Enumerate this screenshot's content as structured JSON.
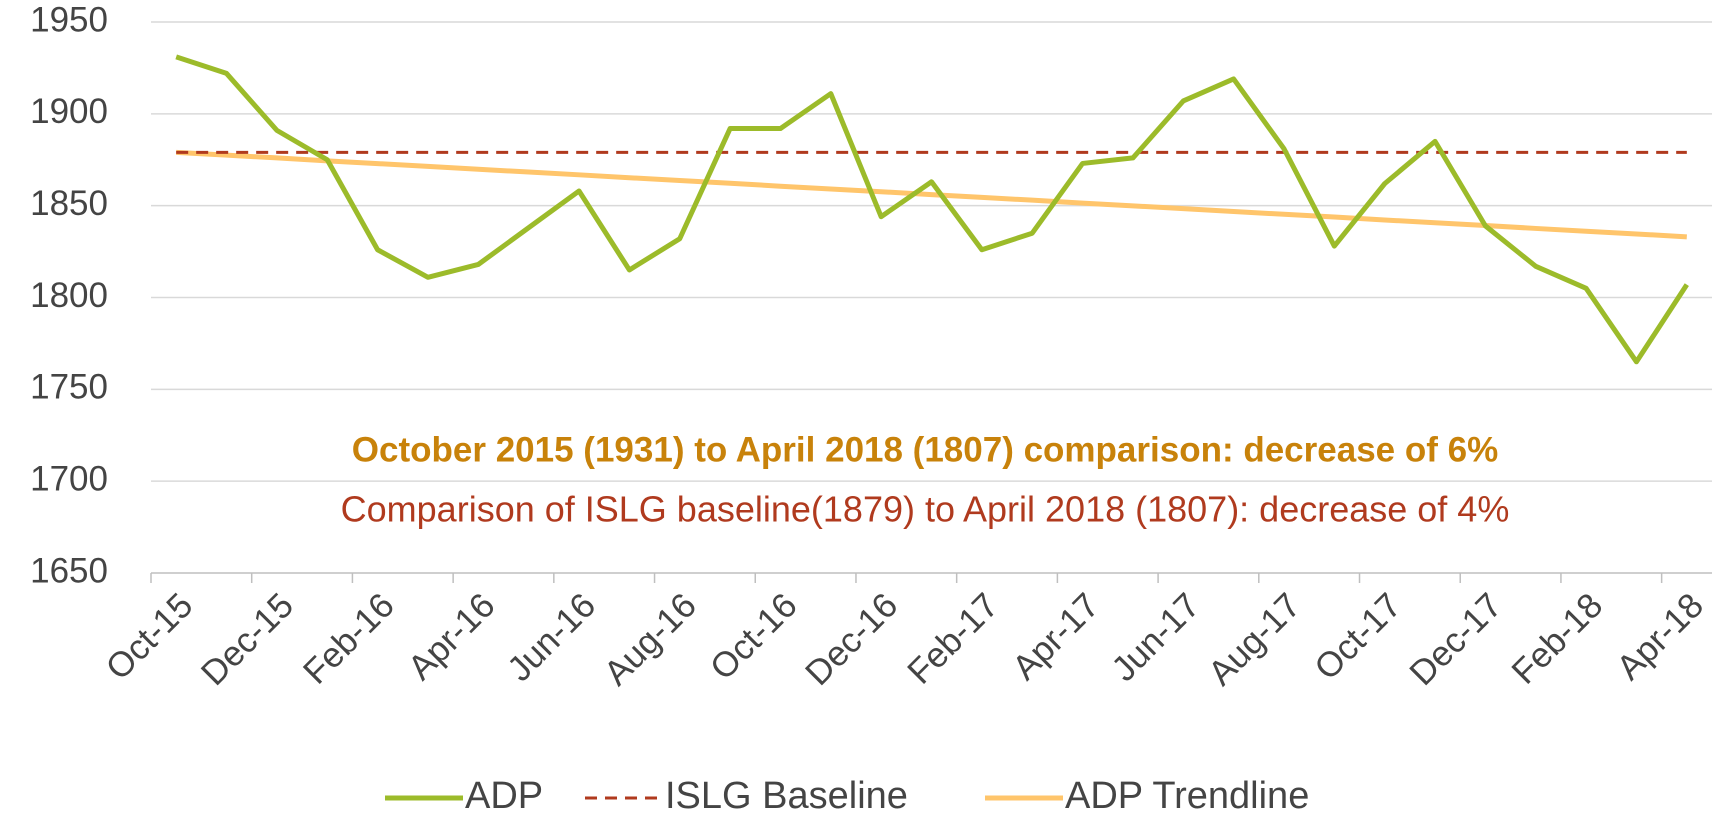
{
  "chart_data": {
    "type": "line",
    "categories": [
      "Oct-15",
      null,
      "Dec-15",
      null,
      "Feb-16",
      null,
      "Apr-16",
      null,
      "Jun-16",
      null,
      "Aug-16",
      null,
      "Oct-16",
      null,
      "Dec-16",
      null,
      "Feb-17",
      null,
      "Apr-17",
      null,
      "Jun-17",
      null,
      "Aug-17",
      null,
      "Oct-17",
      null,
      "Dec-17",
      null,
      "Feb-18",
      null,
      "Apr-18"
    ],
    "series": [
      {
        "name": "ADP",
        "color": "#9cbb2a",
        "dash": false,
        "values": [
          1931,
          1922,
          1891,
          1875,
          1826,
          1811,
          1818,
          1838,
          1858,
          1815,
          1832,
          1892,
          1892,
          1911,
          1844,
          1863,
          1826,
          1835,
          1873,
          1876,
          1907,
          1919,
          1881,
          1828,
          1862,
          1885,
          1839,
          1817,
          1805,
          1765,
          1807
        ]
      },
      {
        "name": "ISLG Baseline",
        "color": "#b03a1e",
        "dash": true,
        "values": [
          1879,
          1879,
          1879,
          1879,
          1879,
          1879,
          1879,
          1879,
          1879,
          1879,
          1879,
          1879,
          1879,
          1879,
          1879,
          1879,
          1879,
          1879,
          1879,
          1879,
          1879,
          1879,
          1879,
          1879,
          1879,
          1879,
          1879,
          1879,
          1879,
          1879,
          1879
        ]
      },
      {
        "name": "ADP Trendline",
        "color": "#ffc56b",
        "dash": false,
        "values": [
          1879,
          1877.5,
          1876,
          1874.4,
          1872.9,
          1871.4,
          1869.8,
          1868.3,
          1866.8,
          1865.2,
          1863.7,
          1862.2,
          1860.6,
          1859.1,
          1857.6,
          1856,
          1854.5,
          1853,
          1851.4,
          1849.9,
          1848.4,
          1846.8,
          1845.3,
          1843.8,
          1842.2,
          1840.7,
          1839.2,
          1837.6,
          1836.1,
          1834.6,
          1833
        ]
      }
    ],
    "ylim": [
      1650,
      1950
    ],
    "yticks": [
      1650,
      1700,
      1750,
      1800,
      1850,
      1900,
      1950
    ],
    "grid": true,
    "legend": "bottom",
    "annotations": [
      {
        "text": "October 2015 (1931) to April 2018 (1807) comparison:  decrease of 6%",
        "color": "#c8820a",
        "bold": true
      },
      {
        "text": "Comparison of ISLG baseline(1879) to April 2018 (1807): decrease of 4%",
        "color": "#b03a1e",
        "bold": false
      }
    ]
  }
}
